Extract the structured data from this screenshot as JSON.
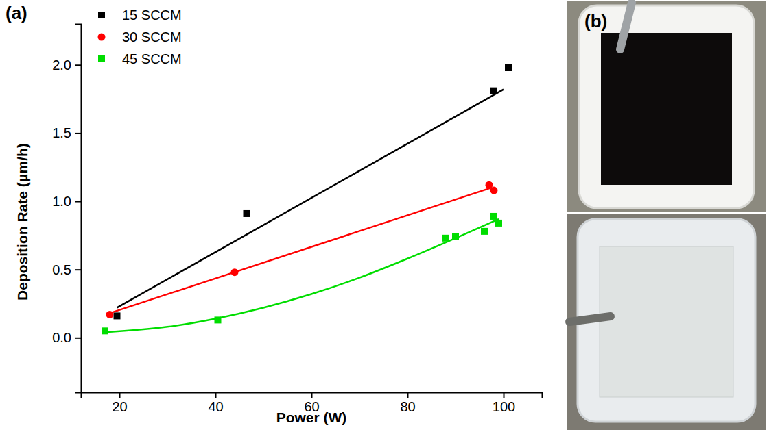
{
  "chart_data": {
    "type": "scatter",
    "panel": "(a)",
    "x_label": "Power (W)",
    "y_label": "Deposition Rate (μm/h)",
    "xlim": [
      12,
      108
    ],
    "xticks": [
      20,
      40,
      60,
      80,
      100
    ],
    "ylim": [
      -0.4,
      2.3
    ],
    "yticks": [
      {
        "value": 0,
        "label": "0.0"
      },
      {
        "value": 0.5,
        "label": "0.5"
      },
      {
        "value": 1,
        "label": "1.0"
      },
      {
        "value": 1.5,
        "label": "1.5"
      },
      {
        "value": 2,
        "label": "2.0"
      }
    ],
    "legend": "top-left",
    "series": [
      {
        "name": "15 SCCM",
        "color": "#000000",
        "marker": "square",
        "x": [
          19.5,
          46.5,
          98,
          101
        ],
        "values": [
          0.16,
          0.91,
          1.81,
          1.98
        ],
        "fit": {
          "x": [
            19.5,
            100
          ],
          "values": [
            0.22,
            1.82
          ]
        }
      },
      {
        "name": "30 SCCM",
        "color": "#ff0000",
        "marker": "circle",
        "x": [
          18,
          44,
          97,
          98
        ],
        "values": [
          0.17,
          0.48,
          1.12,
          1.08
        ],
        "fit": {
          "x": [
            18,
            97.5
          ],
          "values": [
            0.18,
            1.1
          ]
        }
      },
      {
        "name": "45 SCCM",
        "color": "#00dd00",
        "marker": "square",
        "x": [
          17,
          40.5,
          88,
          90,
          96,
          98,
          99
        ],
        "values": [
          0.05,
          0.13,
          0.73,
          0.74,
          0.78,
          0.89,
          0.84
        ],
        "fit": {
          "x": [
            17,
            30,
            40,
            50,
            60,
            70,
            80,
            90,
            99
          ],
          "values": [
            0.04,
            0.08,
            0.14,
            0.22,
            0.32,
            0.44,
            0.58,
            0.73,
            0.87
          ]
        }
      }
    ]
  },
  "photo": {
    "label": "(b)"
  }
}
